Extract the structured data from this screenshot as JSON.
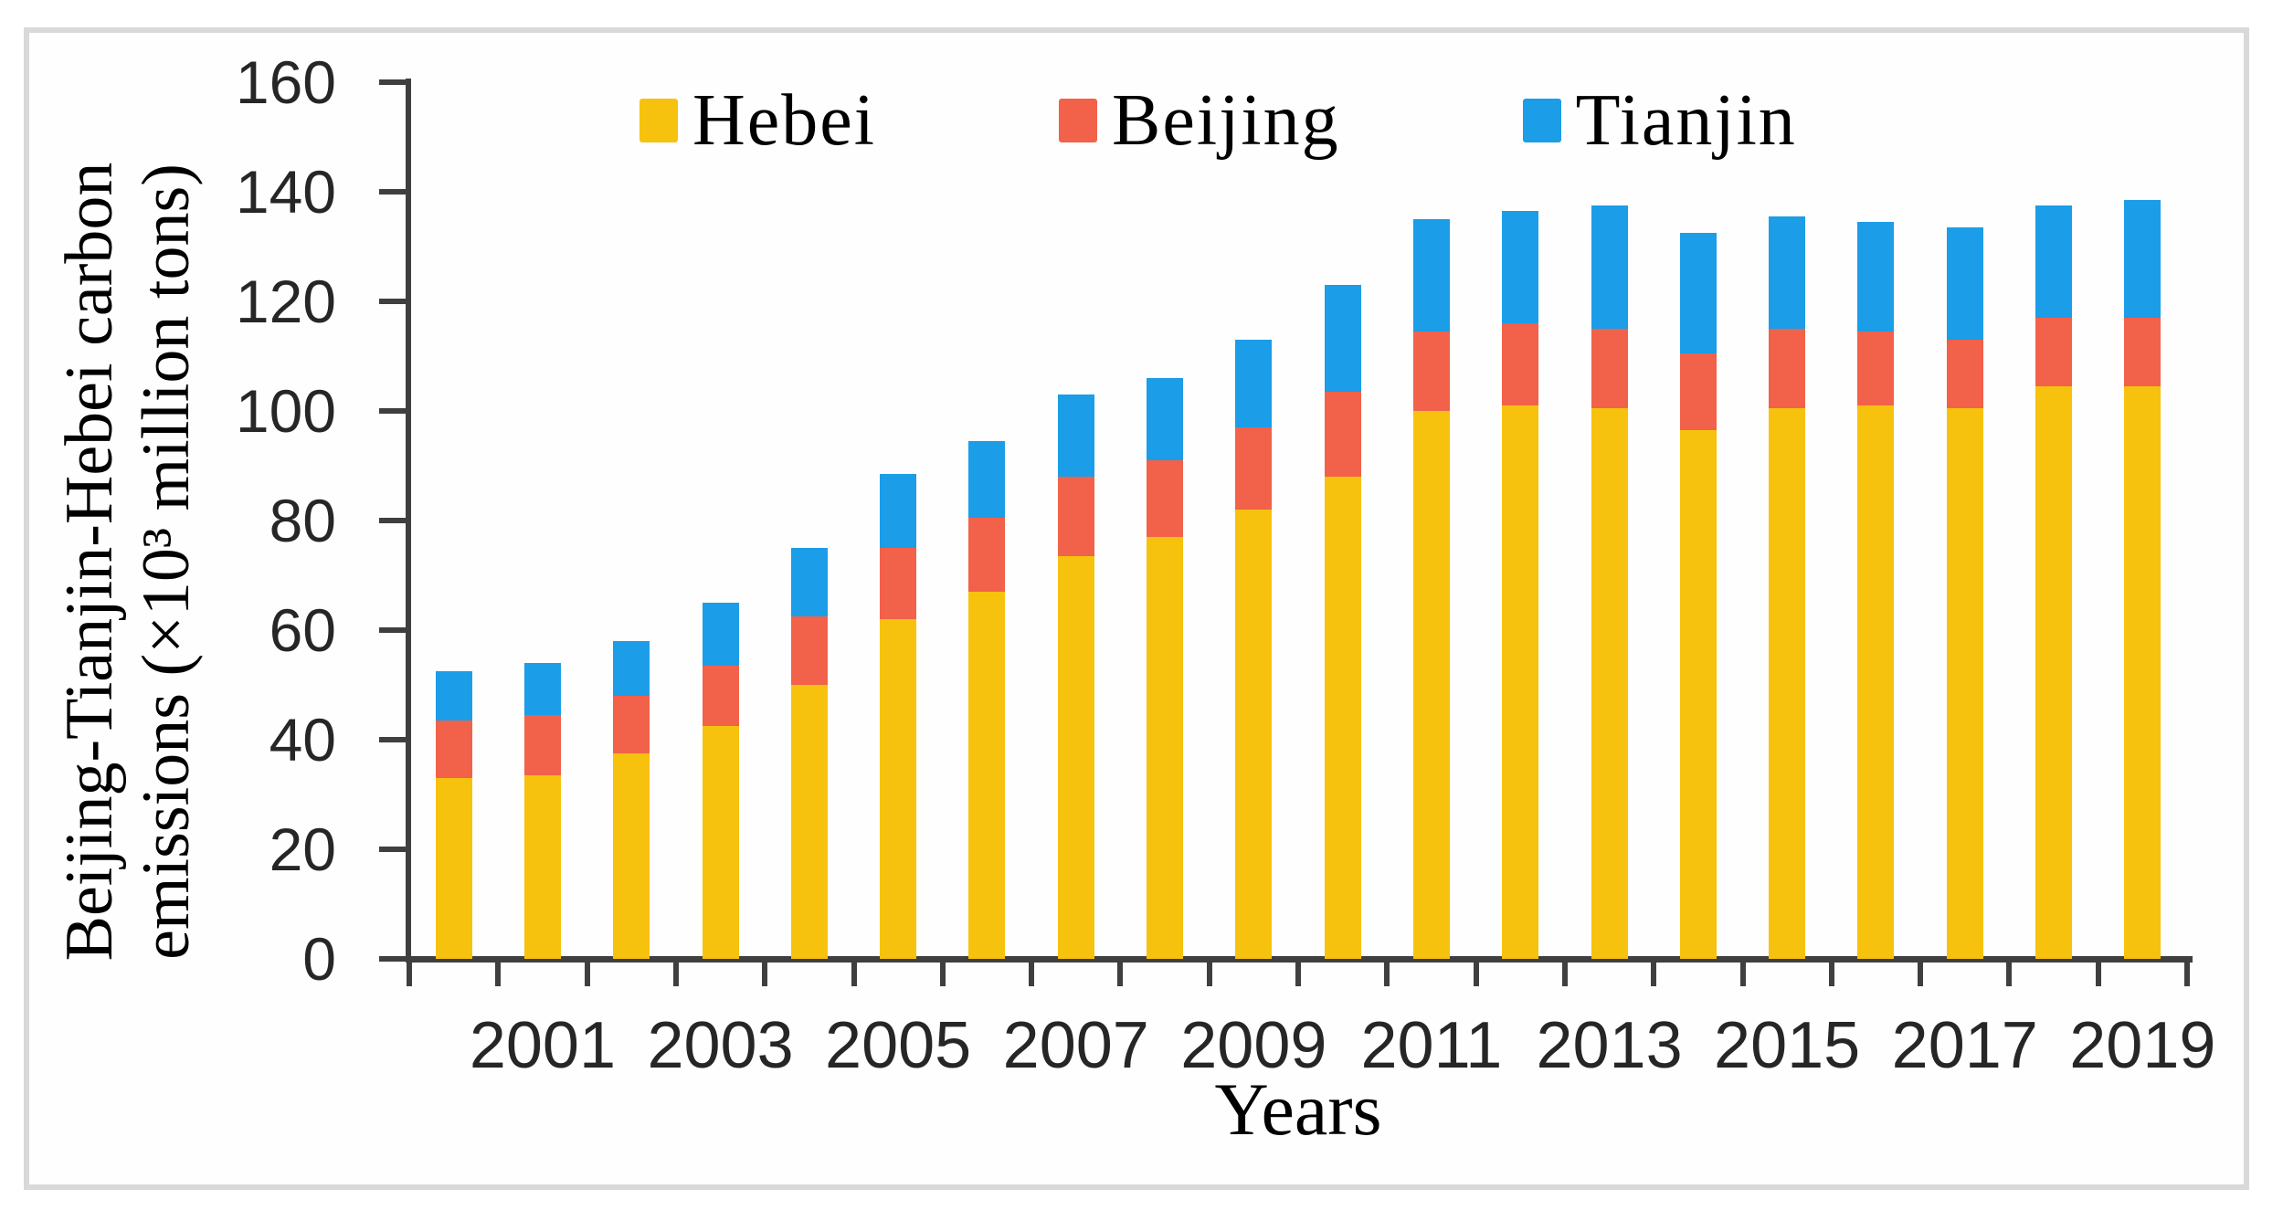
{
  "chart_data": {
    "type": "bar",
    "stacked": true,
    "xlabel": "Years",
    "ylabel_line1": "Beijing-Tianjin-Hebei carbon",
    "ylabel_line2": "emissions (×10³ million tons)",
    "ylim": [
      0,
      160
    ],
    "ytick_step": 20,
    "grid": false,
    "legend_position": "top",
    "x_label_start_index": 1,
    "x_label_every": 2,
    "categories": [
      2000,
      2001,
      2002,
      2003,
      2004,
      2005,
      2006,
      2007,
      2008,
      2009,
      2010,
      2011,
      2012,
      2013,
      2014,
      2015,
      2016,
      2017,
      2018,
      2019
    ],
    "x_tick_labels_shown": [
      "2001",
      "2003",
      "2005",
      "2007",
      "2009",
      "2011",
      "2013",
      "2015",
      "2017",
      "2019"
    ],
    "series": [
      {
        "name": "Hebei",
        "color": "#F7C20E",
        "values": [
          33,
          33.5,
          37.5,
          42.5,
          50,
          62,
          67,
          73.5,
          77,
          82,
          88,
          100,
          101,
          100.5,
          96.5,
          100.5,
          101,
          100.5,
          104.5,
          104.5
        ]
      },
      {
        "name": "Beijing",
        "color": "#F2614A",
        "values": [
          10.5,
          11,
          10.5,
          11,
          12.5,
          13,
          13.5,
          14.5,
          14,
          15,
          15.5,
          14.5,
          15,
          14.5,
          14,
          14.5,
          13.5,
          12.5,
          12.5,
          12.5
        ]
      },
      {
        "name": "Tianjin",
        "color": "#1B9DE8",
        "values": [
          9,
          9.5,
          10,
          11.5,
          12.5,
          13.5,
          14,
          15,
          15,
          16,
          19.5,
          20.5,
          20.5,
          22.5,
          22,
          20.5,
          20,
          20.5,
          20.5,
          21.5
        ]
      }
    ]
  },
  "colors": {
    "axis": "#3F3F3F",
    "frame_border": "#D9D9D9",
    "background": "#FFFFFF",
    "text": "#000000"
  }
}
